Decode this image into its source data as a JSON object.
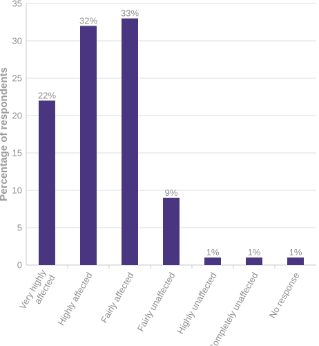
{
  "chart_data": {
    "type": "bar",
    "ylabel": "Percentage of respondents",
    "xlabel": "",
    "title": "",
    "ylim": [
      0,
      35
    ],
    "yticks": [
      "0",
      "5",
      "10",
      "15",
      "20",
      "25",
      "30",
      "35"
    ],
    "categories": [
      "Very highly affected",
      "Highly affected",
      "Fairly affected",
      "Fairly unaffected",
      "Highly unaffected",
      "Completely unaffected",
      "No response"
    ],
    "category_lines": [
      [
        "Very highly",
        "affected"
      ],
      [
        "Highly affected"
      ],
      [
        "Fairly affected"
      ],
      [
        "Fairly unaffected"
      ],
      [
        "Highly unaffected"
      ],
      [
        "Completely unaffected"
      ],
      [
        "No response"
      ]
    ],
    "values": [
      22,
      32,
      33,
      9,
      1,
      1,
      1
    ],
    "value_labels": [
      "22%",
      "32%",
      "33%",
      "9%",
      "1%",
      "1%",
      "1%"
    ],
    "grid": true,
    "bar_color": "#4a3580",
    "grid_color": "#dcdcdc",
    "text_color": "#8f8f8f"
  }
}
